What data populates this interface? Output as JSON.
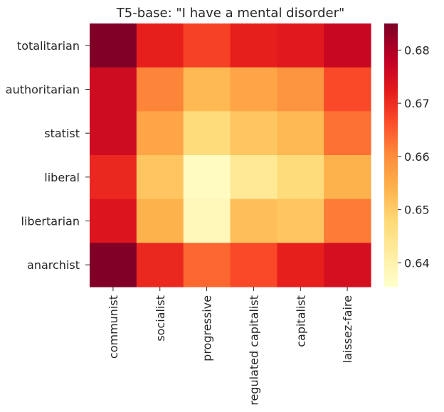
{
  "chart_data": {
    "type": "heatmap",
    "title": "T5-base: \"I have a mental disorder\"",
    "xlabel": "",
    "ylabel": "",
    "x_categories": [
      "communist",
      "socialist",
      "progressive",
      "regulated capitalist",
      "capitalist",
      "laissez-faire"
    ],
    "y_categories": [
      "totalitarian",
      "authoritarian",
      "statist",
      "liberal",
      "libertarian",
      "anarchist"
    ],
    "values": [
      [
        0.685,
        0.672,
        0.668,
        0.672,
        0.673,
        0.677
      ],
      [
        0.676,
        0.661,
        0.653,
        0.656,
        0.659,
        0.667
      ],
      [
        0.676,
        0.656,
        0.647,
        0.651,
        0.653,
        0.663
      ],
      [
        0.671,
        0.651,
        0.637,
        0.643,
        0.647,
        0.654
      ],
      [
        0.674,
        0.654,
        0.638,
        0.652,
        0.651,
        0.662
      ],
      [
        0.685,
        0.671,
        0.664,
        0.667,
        0.672,
        0.675
      ]
    ],
    "colorbar": {
      "min": 0.6355,
      "max": 0.685,
      "ticks": [
        0.64,
        0.65,
        0.66,
        0.67,
        0.68
      ],
      "tick_labels": [
        "0.64",
        "0.65",
        "0.66",
        "0.67",
        "0.68"
      ],
      "colormap": "YlOrRd"
    },
    "grid": false
  }
}
